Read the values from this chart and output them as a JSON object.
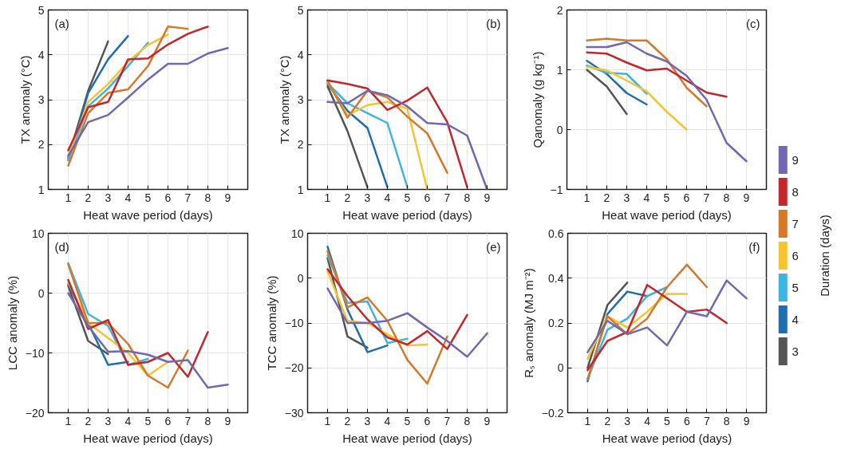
{
  "chart_data": [
    {
      "type": "line",
      "title": "(a)",
      "xlabel": "Heat wave period (days)",
      "ylabel": "TX anomaly (°C)",
      "xlim": [
        0,
        10
      ],
      "xticks": [
        1,
        2,
        3,
        4,
        5,
        6,
        7,
        8,
        9
      ],
      "ylim": [
        1,
        5
      ],
      "yticks": [
        1,
        2,
        3,
        4,
        5
      ],
      "grid": true,
      "series": [
        {
          "color": "#555555",
          "x": [
            1,
            2,
            3
          ],
          "values": [
            1.7,
            3.2,
            4.3
          ]
        },
        {
          "color": "#1f6fb0",
          "x": [
            1,
            2,
            3,
            4
          ],
          "values": [
            1.65,
            3.15,
            3.9,
            4.42
          ]
        },
        {
          "color": "#3fb4e0",
          "x": [
            1,
            2,
            3,
            4,
            5
          ],
          "values": [
            1.65,
            2.85,
            3.25,
            3.75,
            4.27
          ]
        },
        {
          "color": "#f5c431",
          "x": [
            1,
            2,
            3,
            4,
            5,
            6
          ],
          "values": [
            1.75,
            2.95,
            3.35,
            3.85,
            4.22,
            4.45
          ]
        },
        {
          "color": "#d6782a",
          "x": [
            1,
            2,
            3,
            4,
            5,
            6,
            7
          ],
          "values": [
            1.53,
            2.7,
            3.15,
            3.23,
            3.75,
            4.63,
            4.58
          ]
        },
        {
          "color": "#c3262d",
          "x": [
            1,
            2,
            3,
            4,
            5,
            6,
            7,
            8
          ],
          "values": [
            1.87,
            2.83,
            2.95,
            3.9,
            3.92,
            4.23,
            4.47,
            4.63
          ]
        },
        {
          "color": "#7068b0",
          "x": [
            1,
            2,
            3,
            4,
            5,
            6,
            7,
            8,
            9
          ],
          "values": [
            1.75,
            2.5,
            2.66,
            3.05,
            3.45,
            3.8,
            3.8,
            4.03,
            4.15
          ]
        }
      ]
    },
    {
      "type": "line",
      "title": "(b)",
      "xlabel": "Heat wave period (days)",
      "ylabel": "TX anomaly (°C)",
      "xlim": [
        0,
        10
      ],
      "xticks": [
        1,
        2,
        3,
        4,
        5,
        6,
        7,
        8,
        9
      ],
      "ylim": [
        1,
        5
      ],
      "yticks": [
        1,
        2,
        3,
        4,
        5
      ],
      "grid": true,
      "series": [
        {
          "color": "#555555",
          "x": [
            1,
            2,
            3
          ],
          "values": [
            3.3,
            2.3,
            1.05
          ]
        },
        {
          "color": "#1f6fb0",
          "x": [
            1,
            2,
            3,
            4
          ],
          "values": [
            3.35,
            2.75,
            2.37,
            1.05
          ]
        },
        {
          "color": "#3fb4e0",
          "x": [
            1,
            2,
            3,
            4,
            5
          ],
          "values": [
            3.37,
            2.92,
            2.7,
            2.48,
            1.05
          ]
        },
        {
          "color": "#f5c431",
          "x": [
            1,
            2,
            3,
            4,
            5,
            6
          ],
          "values": [
            3.4,
            2.65,
            2.88,
            2.95,
            2.8,
            1.0
          ]
        },
        {
          "color": "#d6782a",
          "x": [
            1,
            2,
            3,
            4,
            5,
            6,
            7
          ],
          "values": [
            3.42,
            2.6,
            3.2,
            3.05,
            2.62,
            2.25,
            1.37
          ]
        },
        {
          "color": "#c3262d",
          "x": [
            1,
            2,
            3,
            4,
            5,
            6,
            7,
            8
          ],
          "values": [
            3.43,
            3.35,
            3.25,
            2.77,
            2.98,
            3.27,
            2.5,
            1.05
          ]
        },
        {
          "color": "#7068b0",
          "x": [
            1,
            2,
            3,
            4,
            5,
            6,
            7,
            8,
            9
          ],
          "values": [
            2.95,
            2.92,
            3.2,
            3.1,
            2.85,
            2.48,
            2.45,
            2.2,
            1.0
          ]
        }
      ]
    },
    {
      "type": "line",
      "title": "(c)",
      "xlabel": "Heat wave period (days)",
      "ylabel": "Qanomaly (g kg⁻¹)",
      "xlim": [
        0,
        10
      ],
      "xticks": [
        1,
        2,
        3,
        4,
        5,
        6,
        7,
        8,
        9
      ],
      "ylim": [
        -1,
        2
      ],
      "yticks": [
        {
          "value": -1,
          "label": "−1"
        },
        0,
        1,
        2
      ],
      "grid": true,
      "legend": "right",
      "legend_title": "Duration (days)",
      "series": [
        {
          "name": "3",
          "color": "#555555",
          "x": [
            1,
            2,
            3
          ],
          "values": [
            1.0,
            0.72,
            0.26
          ]
        },
        {
          "name": "4",
          "color": "#1f6fb0",
          "x": [
            1,
            2,
            3,
            4
          ],
          "values": [
            1.15,
            0.93,
            0.61,
            0.42
          ]
        },
        {
          "name": "5",
          "color": "#3fb4e0",
          "x": [
            1,
            2,
            3,
            4
          ],
          "values": [
            1.07,
            0.95,
            0.93,
            0.6
          ]
        },
        {
          "name": "6",
          "color": "#f5c431",
          "x": [
            1,
            2,
            3,
            4,
            5,
            6
          ],
          "values": [
            1.05,
            0.99,
            0.82,
            0.64,
            0.3,
            0.0
          ]
        },
        {
          "name": "7",
          "color": "#d6782a",
          "x": [
            1,
            2,
            3,
            4,
            5,
            6,
            7
          ],
          "values": [
            1.49,
            1.52,
            1.49,
            1.49,
            1.18,
            0.7,
            0.39
          ]
        },
        {
          "name": "8",
          "color": "#c3262d",
          "x": [
            1,
            2,
            3,
            4,
            5,
            6,
            7,
            8
          ],
          "values": [
            1.29,
            1.27,
            1.12,
            0.99,
            1.02,
            0.82,
            0.62,
            0.55
          ]
        },
        {
          "name": "9",
          "color": "#7068b0",
          "x": [
            1,
            2,
            3,
            4,
            5,
            6,
            7,
            8,
            9
          ],
          "values": [
            1.38,
            1.38,
            1.46,
            1.27,
            1.14,
            0.9,
            0.5,
            -0.22,
            -0.53
          ]
        }
      ]
    },
    {
      "type": "line",
      "title": "(d)",
      "xlabel": "Heat wave period (days)",
      "ylabel": "LCC anomaly (%)",
      "xlim": [
        0,
        10
      ],
      "xticks": [
        1,
        2,
        3,
        4,
        5,
        6,
        7,
        8,
        9
      ],
      "ylim": [
        -20,
        10
      ],
      "yticks": [
        {
          "value": -20,
          "label": "−20"
        },
        {
          "value": -10,
          "label": "−10"
        },
        0,
        10
      ],
      "grid": true,
      "series": [
        {
          "color": "#555555",
          "x": [
            1,
            2,
            3
          ],
          "values": [
            1.2,
            -8,
            -10.2
          ]
        },
        {
          "color": "#1f6fb0",
          "x": [
            1,
            2,
            3,
            4
          ],
          "values": [
            1.5,
            -5,
            -12,
            -11.5
          ]
        },
        {
          "color": "#3fb4e0",
          "x": [
            1,
            2,
            3,
            4,
            5
          ],
          "values": [
            5,
            -3.5,
            -5.5,
            -12,
            -11
          ]
        },
        {
          "color": "#f5c431",
          "x": [
            1,
            2,
            3,
            4,
            5,
            6
          ],
          "values": [
            1.8,
            -5,
            -7.5,
            -10,
            -13.8,
            -11.5
          ]
        },
        {
          "color": "#d6782a",
          "x": [
            1,
            2,
            3,
            4,
            5,
            6,
            7
          ],
          "values": [
            4.8,
            -5,
            -5,
            -8.5,
            -13.8,
            -15.8,
            -9.6
          ]
        },
        {
          "color": "#c3262d",
          "x": [
            1,
            2,
            3,
            4,
            5,
            6,
            7,
            8
          ],
          "values": [
            2.2,
            -6,
            -4.5,
            -12,
            -11.5,
            -10,
            -14,
            -6.5
          ]
        },
        {
          "color": "#7068b0",
          "x": [
            1,
            2,
            3,
            4,
            5,
            6,
            7,
            8,
            9
          ],
          "values": [
            0,
            -5.5,
            -9.8,
            -9.7,
            -10.3,
            -11.5,
            -11.2,
            -15.8,
            -15.3
          ]
        }
      ]
    },
    {
      "type": "line",
      "title": "(e)",
      "xlabel": "Heat wave period (days)",
      "ylabel": "TCC anomaly (%)",
      "xlim": [
        0,
        10
      ],
      "xticks": [
        1,
        2,
        3,
        4,
        5,
        6,
        7,
        8,
        9
      ],
      "ylim": [
        -30,
        10
      ],
      "yticks": [
        {
          "value": -30,
          "label": "−30"
        },
        {
          "value": -20,
          "label": "−20"
        },
        {
          "value": -10,
          "label": "−10"
        },
        0,
        10
      ],
      "grid": true,
      "series": [
        {
          "color": "#555555",
          "x": [
            1,
            2,
            3
          ],
          "values": [
            4.5,
            -13,
            -15.5
          ]
        },
        {
          "color": "#1f6fb0",
          "x": [
            1,
            2,
            3,
            4
          ],
          "values": [
            7,
            -7,
            -16.5,
            -15
          ]
        },
        {
          "color": "#3fb4e0",
          "x": [
            1,
            2,
            3,
            4,
            5
          ],
          "values": [
            5,
            -5.5,
            -5.2,
            -14.5,
            -13.5
          ]
        },
        {
          "color": "#f5c431",
          "x": [
            1,
            2,
            3,
            4,
            5,
            6
          ],
          "values": [
            1.5,
            -9.5,
            -10,
            -12.5,
            -15,
            -14.8
          ]
        },
        {
          "color": "#d6782a",
          "x": [
            1,
            2,
            3,
            4,
            5,
            6,
            7
          ],
          "values": [
            6,
            -6.5,
            -4.3,
            -9.5,
            -18.2,
            -23.5,
            -13
          ]
        },
        {
          "color": "#c3262d",
          "x": [
            1,
            2,
            3,
            4,
            5,
            6,
            7,
            8
          ],
          "values": [
            2,
            -4,
            -9.2,
            -13.2,
            -14.8,
            -11.8,
            -15.8,
            -8.2
          ]
        },
        {
          "color": "#7068b0",
          "x": [
            1,
            2,
            3,
            4,
            5,
            6,
            7,
            8,
            9
          ],
          "values": [
            -2.3,
            -10,
            -10,
            -9.5,
            -7.8,
            -11,
            -14,
            -17.5,
            -12.3
          ]
        }
      ]
    },
    {
      "type": "line",
      "title": "(f)",
      "xlabel": "Heat wave period (days)",
      "ylabel": "Rₛ anomaly (MJ m⁻²)",
      "xlim": [
        0,
        10
      ],
      "xticks": [
        1,
        2,
        3,
        4,
        5,
        6,
        7,
        8,
        9
      ],
      "ylim": [
        -0.2,
        0.6
      ],
      "yticks": [
        {
          "value": -0.2,
          "label": "−0.2"
        },
        0,
        0.2,
        0.4,
        0.6
      ],
      "grid": true,
      "series": [
        {
          "color": "#555555",
          "x": [
            1,
            2,
            3
          ],
          "values": [
            0,
            0.28,
            0.38
          ]
        },
        {
          "color": "#1f6fb0",
          "x": [
            1,
            2,
            3,
            4
          ],
          "values": [
            -0.06,
            0.24,
            0.34,
            0.32
          ]
        },
        {
          "color": "#3fb4e0",
          "x": [
            1,
            2,
            3,
            4,
            5
          ],
          "values": [
            -0.05,
            0.17,
            0.22,
            0.32,
            0.36
          ]
        },
        {
          "color": "#f5c431",
          "x": [
            1,
            2,
            3,
            4,
            5,
            6
          ],
          "values": [
            0.04,
            0.23,
            0.18,
            0.25,
            0.33,
            0.33
          ]
        },
        {
          "color": "#d6782a",
          "x": [
            1,
            2,
            3,
            4,
            5,
            6,
            7
          ],
          "values": [
            -0.05,
            0.23,
            0.15,
            0.22,
            0.36,
            0.46,
            0.36
          ]
        },
        {
          "color": "#c3262d",
          "x": [
            1,
            2,
            3,
            4,
            5,
            6,
            7,
            8
          ],
          "values": [
            -0.01,
            0.12,
            0.16,
            0.37,
            0.31,
            0.25,
            0.26,
            0.2
          ]
        },
        {
          "color": "#7068b0",
          "x": [
            1,
            2,
            3,
            4,
            5,
            6,
            7,
            8,
            9
          ],
          "values": [
            0.07,
            0.21,
            0.15,
            0.18,
            0.1,
            0.25,
            0.23,
            0.39,
            0.31
          ]
        }
      ]
    }
  ]
}
